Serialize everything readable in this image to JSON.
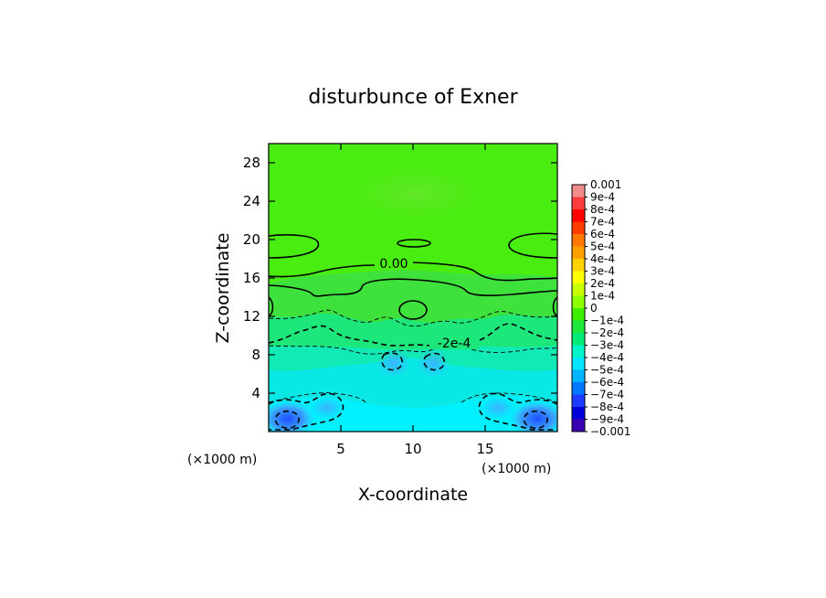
{
  "chart_data": {
    "type": "heatmap",
    "title": "disturbunce of Exner",
    "xlabel": "X-coordinate",
    "ylabel": "Z-coordinate",
    "xunit": "(×1000 m)",
    "yunit": "(×1000 m)",
    "xlim": [
      0,
      20
    ],
    "ylim": [
      0,
      30
    ],
    "xticks": [
      5,
      10,
      15
    ],
    "yticks": [
      4,
      8,
      12,
      16,
      20,
      24,
      28
    ],
    "contour_labels": [
      "0.00",
      "-2e-4"
    ],
    "colorbar": {
      "labels": [
        "0.001",
        "9e-4",
        "8e-4",
        "7e-4",
        "6e-4",
        "5e-4",
        "4e-4",
        "3e-4",
        "2e-4",
        "1e-4",
        "0",
        "−1e-4",
        "−2e-4",
        "−3e-4",
        "−4e-4",
        "−5e-4",
        "−6e-4",
        "−7e-4",
        "−8e-4",
        "−9e-4",
        "−0.001"
      ],
      "colors": [
        "#f28c8c",
        "#ff3c3c",
        "#ff0000",
        "#ff3c00",
        "#ff7800",
        "#ffa000",
        "#ffd200",
        "#ffff00",
        "#c8ff00",
        "#8cff00",
        "#3cf000",
        "#1ee63c",
        "#00eb78",
        "#00f5c8",
        "#00e6ff",
        "#00b4ff",
        "#0078ff",
        "#1e3cff",
        "#0000dc",
        "#3c00b4"
      ]
    }
  }
}
